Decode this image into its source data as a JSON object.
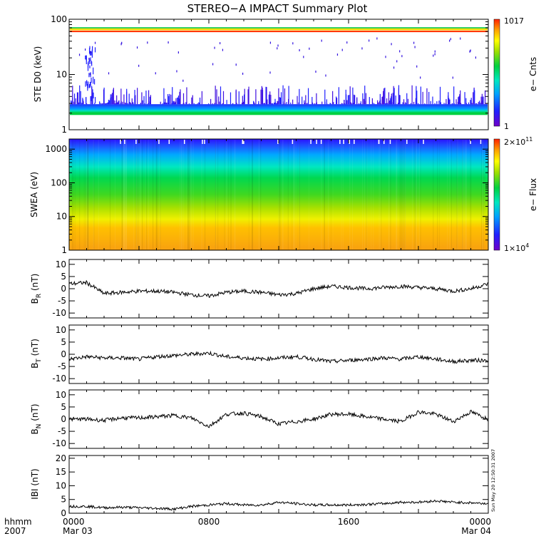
{
  "title": "STEREO−A IMPACT Summary Plot",
  "footer": {
    "row1": "hhmm",
    "row2": "2007"
  },
  "timestamp": "Sun May 20 12:50:31 2007",
  "colors": {
    "background": "#ffffff",
    "line": "#000000"
  },
  "chart_data": [
    {
      "type": "heatmap",
      "panel": "ste",
      "ylabel": "STE D0 (keV)",
      "yscale": "log",
      "ylim": [
        1,
        100
      ],
      "yticks": [
        "1",
        "10",
        "100"
      ],
      "colorbar": {
        "label": "e− Cnts",
        "max_label": "1017",
        "min_label": "1"
      }
    },
    {
      "type": "heatmap",
      "panel": "swea",
      "ylabel": "SWEA (eV)",
      "yscale": "log",
      "ylim": [
        1,
        2000
      ],
      "yticks": [
        "1",
        "10",
        "100",
        "1000"
      ],
      "colorbar": {
        "label": "e− Flux",
        "max_label": "2×10",
        "max_exp": "11",
        "min_label": "1×10",
        "min_exp": "4"
      }
    },
    {
      "type": "line",
      "panel": "br",
      "ylabel": "B",
      "ylabel_sub": "R",
      "ylabel_unit": " (nT)",
      "ylim": [
        -12,
        12
      ],
      "yticks": [
        "-10",
        "-5",
        "0",
        "5",
        "10"
      ],
      "x_hours": [
        0,
        1,
        2,
        3,
        4,
        5,
        6,
        7,
        8,
        9,
        10,
        11,
        12,
        13,
        14,
        15,
        16,
        17,
        18,
        19,
        20,
        21,
        22,
        23,
        24
      ],
      "values": [
        2,
        2.5,
        -2,
        -1.5,
        -1,
        -1,
        -1.5,
        -2.5,
        -3,
        -1.5,
        -1,
        -1.5,
        -2.5,
        -2,
        0,
        1,
        0.5,
        0,
        0.5,
        1,
        0.5,
        0,
        -1,
        0,
        2
      ]
    },
    {
      "type": "line",
      "panel": "bt",
      "ylabel": "B",
      "ylabel_sub": "T",
      "ylabel_unit": " (nT)",
      "ylim": [
        -12,
        12
      ],
      "yticks": [
        "-10",
        "-5",
        "0",
        "5",
        "10"
      ],
      "x_hours": [
        0,
        1,
        2,
        3,
        4,
        5,
        6,
        7,
        8,
        9,
        10,
        11,
        12,
        13,
        14,
        15,
        16,
        17,
        18,
        19,
        20,
        21,
        22,
        23,
        24
      ],
      "values": [
        -2,
        -1,
        -1.5,
        -1.5,
        -2,
        -1,
        -0.5,
        0,
        0.5,
        -1,
        -1.5,
        -2,
        -1.5,
        -1,
        -2,
        -3,
        -2.5,
        -2,
        -1.5,
        -2,
        -1,
        -2,
        -3,
        -2.5,
        -2.5
      ]
    },
    {
      "type": "line",
      "panel": "bn",
      "ylabel": "B",
      "ylabel_sub": "N",
      "ylabel_unit": " (nT)",
      "ylim": [
        -12,
        12
      ],
      "yticks": [
        "-10",
        "-5",
        "0",
        "5",
        "10"
      ],
      "x_hours": [
        0,
        1,
        2,
        3,
        4,
        5,
        6,
        7,
        8,
        9,
        10,
        11,
        12,
        13,
        14,
        15,
        16,
        17,
        18,
        19,
        20,
        21,
        22,
        23,
        24
      ],
      "values": [
        0,
        0,
        -0.5,
        0.5,
        0.5,
        1,
        1.5,
        0.5,
        -3,
        2,
        2.5,
        1,
        -2,
        -1,
        0,
        2,
        2,
        1,
        0,
        -1,
        3,
        2,
        -1,
        3,
        0
      ]
    },
    {
      "type": "line",
      "panel": "bmag",
      "ylabel": "IBI (nT)",
      "ylim": [
        0,
        21
      ],
      "yticks": [
        "0",
        "5",
        "10",
        "15",
        "20"
      ],
      "x_hours": [
        0,
        1,
        2,
        3,
        4,
        5,
        6,
        7,
        8,
        9,
        10,
        11,
        12,
        13,
        14,
        15,
        16,
        17,
        18,
        19,
        20,
        21,
        22,
        23,
        24
      ],
      "values": [
        2.5,
        2.5,
        2,
        2.2,
        2,
        1.8,
        1.5,
        2.5,
        3,
        3.5,
        3,
        3,
        4,
        3.5,
        3,
        3,
        3,
        3.2,
        3.5,
        4,
        4,
        4.5,
        4,
        3.8,
        3.5
      ]
    }
  ],
  "xaxis": {
    "xlim_hours": [
      0,
      24
    ],
    "ticks": [
      {
        "hour": 0,
        "label": "0000",
        "sub": "Mar 03"
      },
      {
        "hour": 8,
        "label": "0800",
        "sub": ""
      },
      {
        "hour": 16,
        "label": "1600",
        "sub": ""
      },
      {
        "hour": 24,
        "label": "0000",
        "sub": "Mar 04"
      }
    ]
  }
}
